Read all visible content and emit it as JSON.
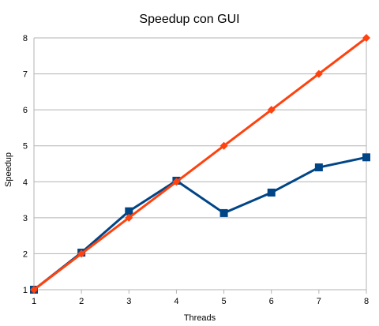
{
  "chart_data": {
    "type": "line",
    "title": "Speedup con GUI",
    "xlabel": "Threads",
    "ylabel": "Speedup",
    "x": [
      1,
      2,
      3,
      4,
      5,
      6,
      7,
      8
    ],
    "xlim": [
      1,
      8
    ],
    "ylim": [
      1,
      8
    ],
    "yticks": [
      1,
      2,
      3,
      4,
      5,
      6,
      7,
      8
    ],
    "grid": true,
    "legend": "none",
    "series": [
      {
        "values": [
          1,
          2.03,
          3.18,
          4.03,
          3.13,
          3.7,
          4.4,
          4.68
        ],
        "color": "#004586",
        "marker": "square"
      },
      {
        "values": [
          1,
          2,
          3,
          4,
          5,
          6,
          7,
          8
        ],
        "color": "#ff420e",
        "marker": "diamond"
      }
    ]
  }
}
